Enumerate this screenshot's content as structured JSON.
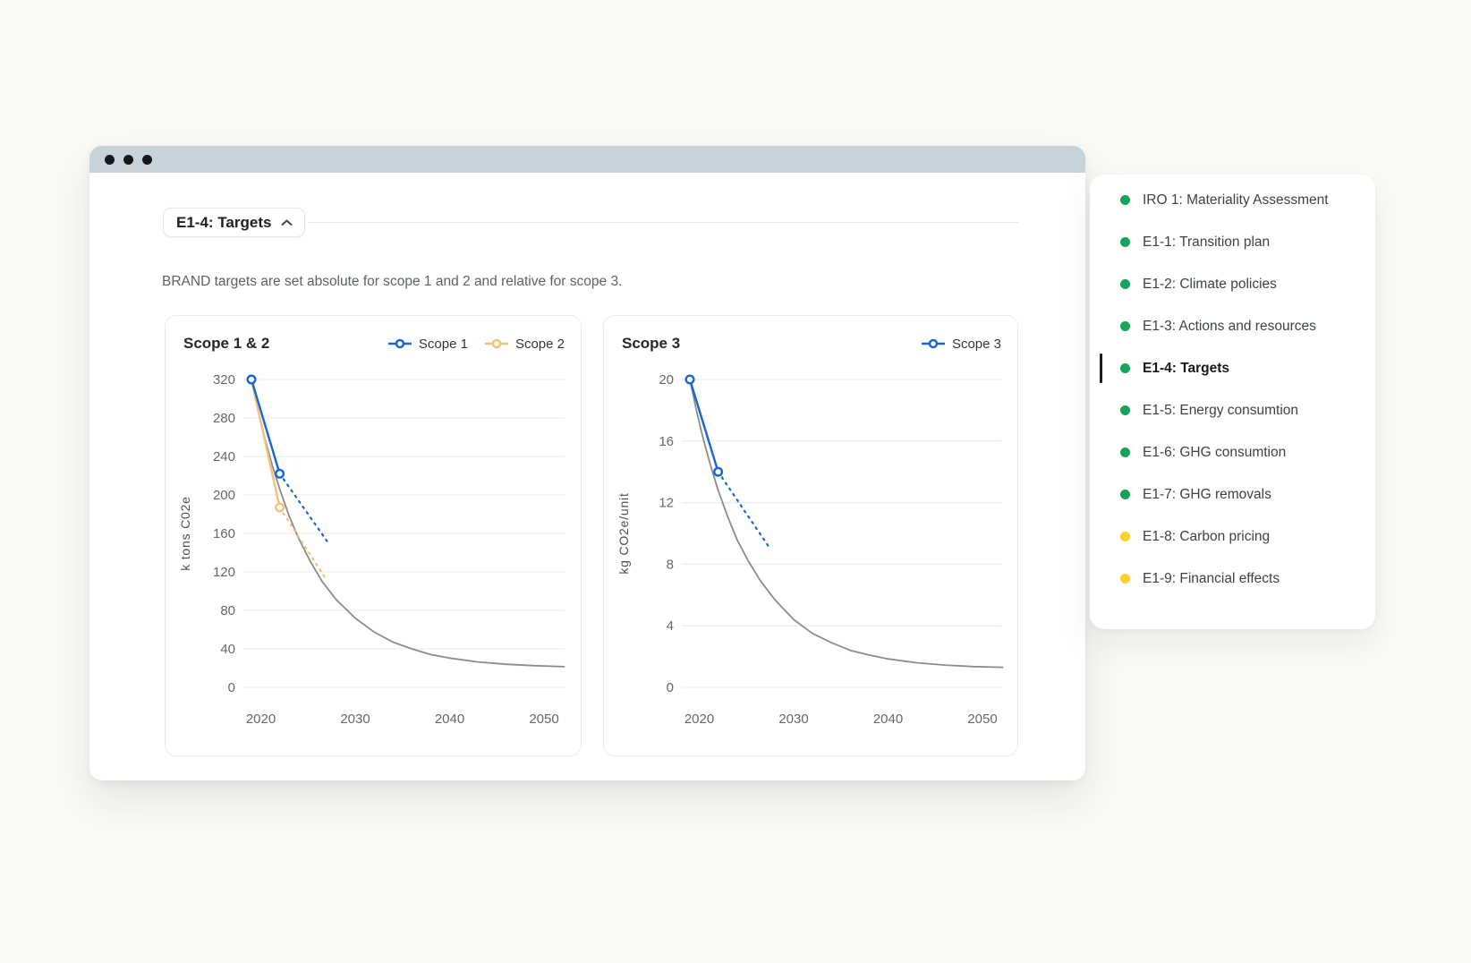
{
  "window": {
    "titlebar_dots": 3,
    "titlebar_color": "#c6d3da"
  },
  "section": {
    "title": "E1-4: Targets",
    "description": "BRAND targets are set absolute for scope 1 and 2 and relative for scope 3."
  },
  "colors": {
    "accent_blue": "#1766d6",
    "accent_orange": "#f5c178",
    "pathway_gray": "#8c8c8c",
    "gridline": "#e8e8e8",
    "tick_text": "#64686d",
    "axis_label_text": "#4b5055",
    "green_dot": "#18a35d",
    "yellow_dot": "#fcd12a"
  },
  "chart_data": [
    {
      "type": "line",
      "title": "Scope 1 & 2",
      "ylabel": "k tons C02e",
      "xticks": [
        2020,
        2030,
        2040,
        2050
      ],
      "yticks": [
        0,
        40,
        80,
        120,
        160,
        200,
        240,
        280,
        320
      ],
      "xlim": [
        2018.2,
        2052.2
      ],
      "ylim": [
        0,
        320
      ],
      "grid": "horizontal",
      "legend_position": "top-right",
      "series": [
        {
          "name": "Scope 1",
          "color": "#1766d6",
          "legend": true,
          "actual": [
            [
              2019,
              320
            ],
            [
              2022,
              222
            ]
          ],
          "target_dashed": [
            [
              2022,
              222
            ],
            [
              2027.3,
              148
            ]
          ]
        },
        {
          "name": "Scope 2",
          "color": "#f5c178",
          "legend": true,
          "actual": [
            [
              2019,
              320
            ],
            [
              2022,
              187
            ]
          ],
          "target_dashed": [
            [
              2022,
              187
            ],
            [
              2027,
              111
            ]
          ]
        },
        {
          "name": "",
          "color": "#8c8c8c",
          "legend": false,
          "curve": [
            [
              2019,
              320
            ],
            [
              2019.7,
              288
            ],
            [
              2020.4,
              260
            ],
            [
              2021.2,
              231
            ],
            [
              2022,
              206
            ],
            [
              2023,
              178
            ],
            [
              2024,
              155
            ],
            [
              2025.2,
              131.5
            ],
            [
              2026.5,
              110
            ],
            [
              2028,
              91
            ],
            [
              2030,
              72
            ],
            [
              2032,
              57.5
            ],
            [
              2034,
              47
            ],
            [
              2036,
              40
            ],
            [
              2038,
              34
            ],
            [
              2040,
              30.4
            ],
            [
              2043,
              26.4
            ],
            [
              2046,
              24
            ],
            [
              2049,
              22.5
            ],
            [
              2052.2,
              21.5
            ]
          ]
        }
      ]
    },
    {
      "type": "line",
      "title": "Scope 3",
      "ylabel": "kg CO2e/unit",
      "xticks": [
        2020,
        2030,
        2040,
        2050
      ],
      "yticks": [
        0,
        4,
        8,
        12,
        16,
        20
      ],
      "xlim": [
        2018.2,
        2052.2
      ],
      "ylim": [
        0,
        20
      ],
      "grid": "horizontal",
      "legend_position": "top-right",
      "series": [
        {
          "name": "Scope 3",
          "color": "#1766d6",
          "legend": true,
          "actual": [
            [
              2019,
              20
            ],
            [
              2022,
              14
            ]
          ],
          "target_dashed": [
            [
              2022,
              14
            ],
            [
              2027.3,
              9.2
            ]
          ]
        },
        {
          "name": "",
          "color": "#8c8c8c",
          "legend": false,
          "curve": [
            [
              2019,
              20
            ],
            [
              2019.7,
              18.0
            ],
            [
              2020.4,
              16.2
            ],
            [
              2021.2,
              14.4
            ],
            [
              2022,
              12.8
            ],
            [
              2023,
              11.1
            ],
            [
              2024,
              9.6
            ],
            [
              2025.2,
              8.2
            ],
            [
              2026.5,
              6.9
            ],
            [
              2028,
              5.7
            ],
            [
              2030,
              4.4
            ],
            [
              2032,
              3.5
            ],
            [
              2034,
              2.9
            ],
            [
              2036,
              2.4
            ],
            [
              2038,
              2.1
            ],
            [
              2040,
              1.85
            ],
            [
              2043,
              1.6
            ],
            [
              2046,
              1.45
            ],
            [
              2049,
              1.35
            ],
            [
              2052.2,
              1.3
            ]
          ]
        }
      ]
    }
  ],
  "sidebar": {
    "items": [
      {
        "label": "IRO 1: Materiality Assessment",
        "status": "green",
        "active": false
      },
      {
        "label": "E1-1: Transition plan",
        "status": "green",
        "active": false
      },
      {
        "label": "E1-2: Climate policies",
        "status": "green",
        "active": false
      },
      {
        "label": "E1-3: Actions and resources",
        "status": "green",
        "active": false
      },
      {
        "label": "E1-4: Targets",
        "status": "green",
        "active": true
      },
      {
        "label": "E1-5: Energy consumtion",
        "status": "green",
        "active": false
      },
      {
        "label": "E1-6: GHG consumtion",
        "status": "green",
        "active": false
      },
      {
        "label": "E1-7: GHG removals",
        "status": "green",
        "active": false
      },
      {
        "label": "E1-8: Carbon pricing",
        "status": "yellow",
        "active": false
      },
      {
        "label": "E1-9: Financial effects",
        "status": "yellow",
        "active": false
      }
    ]
  }
}
